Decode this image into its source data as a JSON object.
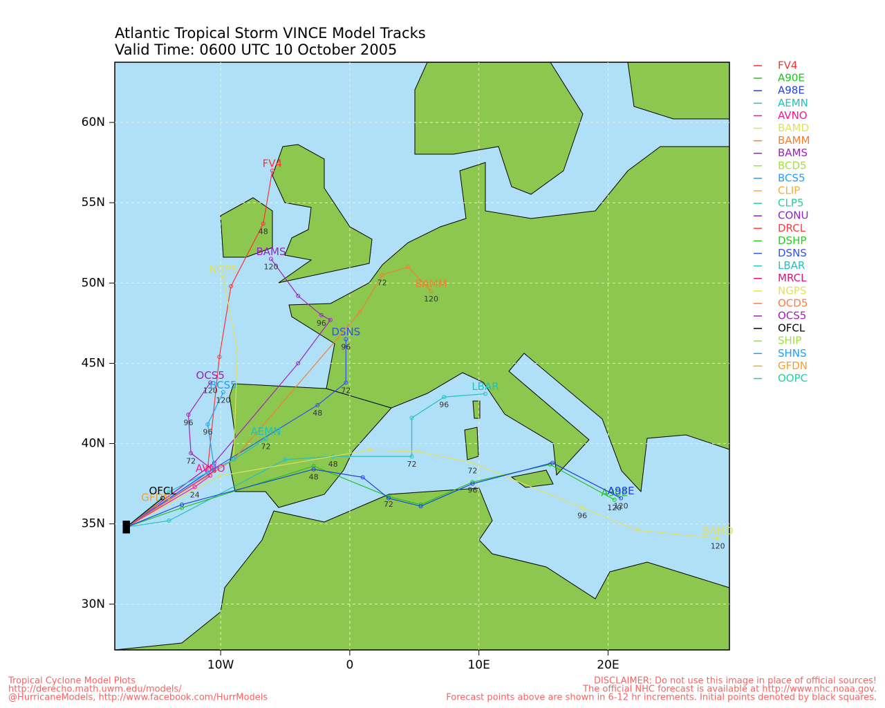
{
  "title": "Atlantic Tropical Storm VINCE Model Tracks",
  "subtitle": "Valid Time: 0600 UTC 10 October 2005",
  "map": {
    "lonlim": [
      -18.2,
      29.4
    ],
    "latlim": [
      27.15,
      63.75
    ],
    "grid": true,
    "lonticks": [
      {
        "value": -10,
        "label": "10W"
      },
      0,
      {
        "value": 10,
        "label": "10E"
      },
      {
        "value": 20,
        "label": "20E"
      }
    ],
    "latticks": [
      {
        "value": 30,
        "label": "30N"
      },
      {
        "value": 35,
        "label": "35N"
      },
      {
        "value": 40,
        "label": "40N"
      },
      {
        "value": 45,
        "label": "45N"
      },
      {
        "value": 50,
        "label": "50N"
      },
      {
        "value": 55,
        "label": "55N"
      },
      {
        "value": 60,
        "label": "60N"
      }
    ]
  },
  "legend": [
    {
      "name": "FV4",
      "color": "#ff3030"
    },
    {
      "name": "A90E",
      "color": "#20c020"
    },
    {
      "name": "A98E",
      "color": "#2040e0"
    },
    {
      "name": "AEMN",
      "color": "#20c0c0"
    },
    {
      "name": "AVNO",
      "color": "#ff1493"
    },
    {
      "name": "BAMD",
      "color": "#e0e060"
    },
    {
      "name": "BAMM",
      "color": "#f08030"
    },
    {
      "name": "BAMS",
      "color": "#a020c0"
    },
    {
      "name": "BCD5",
      "color": "#a0e040"
    },
    {
      "name": "BCS5",
      "color": "#20a0f0"
    },
    {
      "name": "CLIP",
      "color": "#f0b040"
    },
    {
      "name": "CLP5",
      "color": "#20d0a0"
    },
    {
      "name": "CONU",
      "color": "#9020d0"
    },
    {
      "name": "DRCL",
      "color": "#f04040"
    },
    {
      "name": "DSHP",
      "color": "#20d020"
    },
    {
      "name": "DSNS",
      "color": "#3050f0"
    },
    {
      "name": "LBAR",
      "color": "#20c0c0"
    },
    {
      "name": "MRCL",
      "color": "#e01080"
    },
    {
      "name": "NGPS",
      "color": "#e0e060"
    },
    {
      "name": "OCD5",
      "color": "#f08040"
    },
    {
      "name": "OCS5",
      "color": "#a020b0"
    },
    {
      "name": "OFCL",
      "color": "#000000"
    },
    {
      "name": "SHIP",
      "color": "#a0e040"
    },
    {
      "name": "SHNS",
      "color": "#20a0f0"
    },
    {
      "name": "GFDN",
      "color": "#f0a030"
    },
    {
      "name": "OOPC",
      "color": "#20d0a0"
    }
  ],
  "tracks": [
    {
      "name": "FV4",
      "color": "#ff3030",
      "lon": [
        -17.3,
        -11,
        -10.1,
        -9.2,
        -6.7,
        -6.0
      ],
      "lat": [
        34.8,
        38.5,
        45.4,
        49.8,
        53.7,
        57.0
      ],
      "hours": [
        null,
        null,
        null,
        null,
        48,
        null
      ]
    },
    {
      "name": "BAMS",
      "color": "#a020c0",
      "lon": [
        -17.3,
        -10.5,
        -4,
        -1.5,
        -2.2,
        -4,
        -6.1
      ],
      "lat": [
        34.8,
        38.8,
        45,
        47.7,
        48,
        49.2,
        51.5
      ],
      "hours": [
        null,
        null,
        null,
        null,
        96,
        null,
        120
      ]
    },
    {
      "name": "OCS5",
      "color": "#a020b0",
      "lon": [
        -17.3,
        -10.5,
        -12.3,
        -12.5,
        -10.8
      ],
      "lat": [
        34.8,
        38.3,
        39.4,
        41.8,
        43.8
      ],
      "hours": [
        null,
        null,
        72,
        96,
        120
      ]
    },
    {
      "name": "BCS5",
      "color": "#20a0f0",
      "lon": [
        -17.3,
        -10.5,
        -11,
        -9.8
      ],
      "lat": [
        34.8,
        38.5,
        41.2,
        43.2
      ],
      "hours": [
        null,
        null,
        96,
        120
      ]
    },
    {
      "name": "NGPS",
      "color": "#e0e060",
      "lon": [
        -17.3,
        -9,
        -8.7,
        -9.8
      ],
      "lat": [
        34.8,
        39,
        45.7,
        50.4
      ],
      "hours": [
        null,
        null,
        null,
        null
      ]
    },
    {
      "name": "DSNS",
      "color": "#3050f0",
      "lon": [
        -17.3,
        -11,
        -2.5,
        -0.3,
        -0.3
      ],
      "lat": [
        34.8,
        38.2,
        42.4,
        43.8,
        46.5
      ],
      "hours": [
        null,
        null,
        48,
        72,
        96
      ]
    },
    {
      "name": "BAMM",
      "color": "#f08030",
      "lon": [
        -17.3,
        -9,
        0.8,
        2.5,
        4.5,
        6.3
      ],
      "lat": [
        34.8,
        39,
        48.2,
        50.5,
        51,
        49.5
      ],
      "hours": [
        null,
        null,
        null,
        72,
        null,
        120
      ]
    },
    {
      "name": "AEMN",
      "color": "#20c0c0",
      "lon": [
        -17.3,
        -14,
        -9,
        -6.5
      ],
      "lat": [
        34.8,
        37,
        39,
        40.3
      ],
      "hours": [
        null,
        null,
        null,
        72
      ]
    },
    {
      "name": "LBAR",
      "color": "#20c0c0",
      "lon": [
        -17.3,
        -14,
        -5,
        -1.3,
        4.8,
        4.8,
        7.3,
        10.5
      ],
      "lat": [
        34.8,
        35.2,
        39,
        39.2,
        39.2,
        41.6,
        42.9,
        43.1
      ],
      "hours": [
        null,
        null,
        null,
        48,
        72,
        null,
        96,
        null
      ]
    },
    {
      "name": "BAMD",
      "color": "#e0e060",
      "lon": [
        -17.3,
        -10,
        1.5,
        5.3,
        9.5,
        18,
        22.3,
        28.5
      ],
      "lat": [
        34.8,
        38,
        39.6,
        39.5,
        38.8,
        36,
        34.6,
        34.1
      ],
      "hours": [
        null,
        null,
        null,
        null,
        72,
        96,
        null,
        120
      ]
    },
    {
      "name": "A90E",
      "color": "#20c020",
      "lon": [
        -17.3,
        -13,
        -2.8,
        3,
        5.5,
        9.5,
        15.5,
        20.5
      ],
      "lat": [
        34.8,
        36,
        38.6,
        36.7,
        36.2,
        37.6,
        38.7,
        36.5
      ],
      "hours": [
        null,
        null,
        null,
        72,
        null,
        96,
        null,
        120
      ]
    },
    {
      "name": "A98E",
      "color": "#2040e0",
      "lon": [
        -17.3,
        -13,
        -2.8,
        1,
        3,
        5.5,
        9.5,
        15.7,
        21
      ],
      "lat": [
        34.8,
        36.2,
        38.4,
        37.9,
        36.6,
        36.1,
        37.5,
        38.8,
        36.6
      ],
      "hours": [
        null,
        null,
        48,
        null,
        null,
        null,
        null,
        null,
        120
      ]
    },
    {
      "name": "AVNO",
      "color": "#ff1493",
      "lon": [
        -17.3,
        -12,
        -10.8
      ],
      "lat": [
        34.8,
        37.3,
        38
      ],
      "hours": [
        null,
        24,
        null
      ]
    },
    {
      "name": "GFDN",
      "color": "#f0a030",
      "lon": [
        -17.3,
        -15
      ],
      "lat": [
        34.8,
        36.2
      ],
      "hours": [
        null,
        null
      ]
    },
    {
      "name": "OFCL",
      "color": "#000000",
      "lon": [
        -17.3,
        -14.5
      ],
      "lat": [
        34.8,
        36.6
      ],
      "hours": [
        null,
        null
      ]
    }
  ],
  "footer": {
    "left": [
      "Tropical Cyclone Model Plots",
      "http://derecho.math.uwm.edu/models/",
      "@HurricaneModels, http://www.facebook.com/HurrModels"
    ],
    "right": [
      "DISCLAIMER: Do not use this image in place of official sources!",
      "The official NHC forecast is available at http://www.nhc.noaa.gov.",
      "Forecast points above are shown in 6-12 hr increments. Initial points denoted by black squares."
    ]
  }
}
